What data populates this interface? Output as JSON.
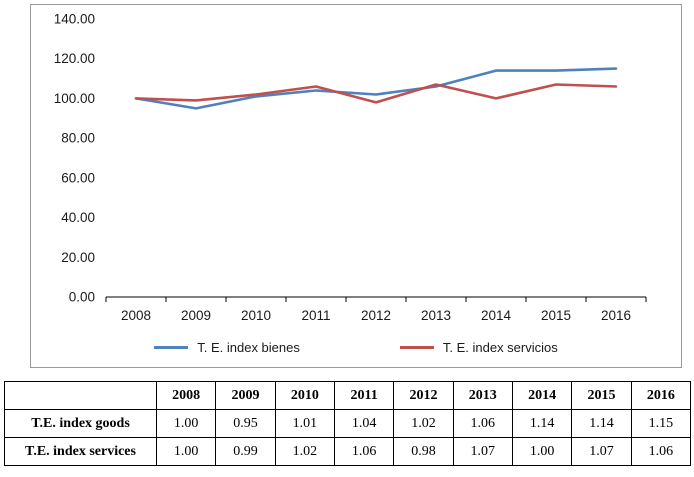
{
  "chart_data": {
    "type": "line",
    "title": "",
    "xlabel": "",
    "ylabel": "",
    "categories": [
      "2008",
      "2009",
      "2010",
      "2011",
      "2012",
      "2013",
      "2014",
      "2015",
      "2016"
    ],
    "series": [
      {
        "id": "bienes",
        "name": "T. E. index bienes",
        "color": "#4F81BD",
        "values": [
          100,
          95,
          101,
          104,
          102,
          106,
          114,
          114,
          115
        ]
      },
      {
        "id": "servicios",
        "name": "T. E. index servicios",
        "color": "#C0504D",
        "values": [
          100,
          99,
          102,
          106,
          98,
          107,
          100,
          107,
          106
        ]
      }
    ],
    "ylim": [
      0,
      140
    ],
    "y_tick_step": 20,
    "y_tick_labels": [
      "0.00",
      "20.00",
      "40.00",
      "60.00",
      "80.00",
      "100.00",
      "120.00",
      "140.00"
    ],
    "grid": false,
    "legend_position": "bottom"
  },
  "table": {
    "header": [
      "",
      "2008",
      "2009",
      "2010",
      "2011",
      "2012",
      "2013",
      "2014",
      "2015",
      "2016"
    ],
    "rows": [
      {
        "label": "T.E. index goods",
        "values": [
          "1.00",
          "0.95",
          "1.01",
          "1.04",
          "1.02",
          "1.06",
          "1.14",
          "1.14",
          "1.15"
        ]
      },
      {
        "label": "T.E. index services",
        "values": [
          "1.00",
          "0.99",
          "1.02",
          "1.06",
          "0.98",
          "1.07",
          "1.00",
          "1.07",
          "1.06"
        ]
      }
    ]
  }
}
